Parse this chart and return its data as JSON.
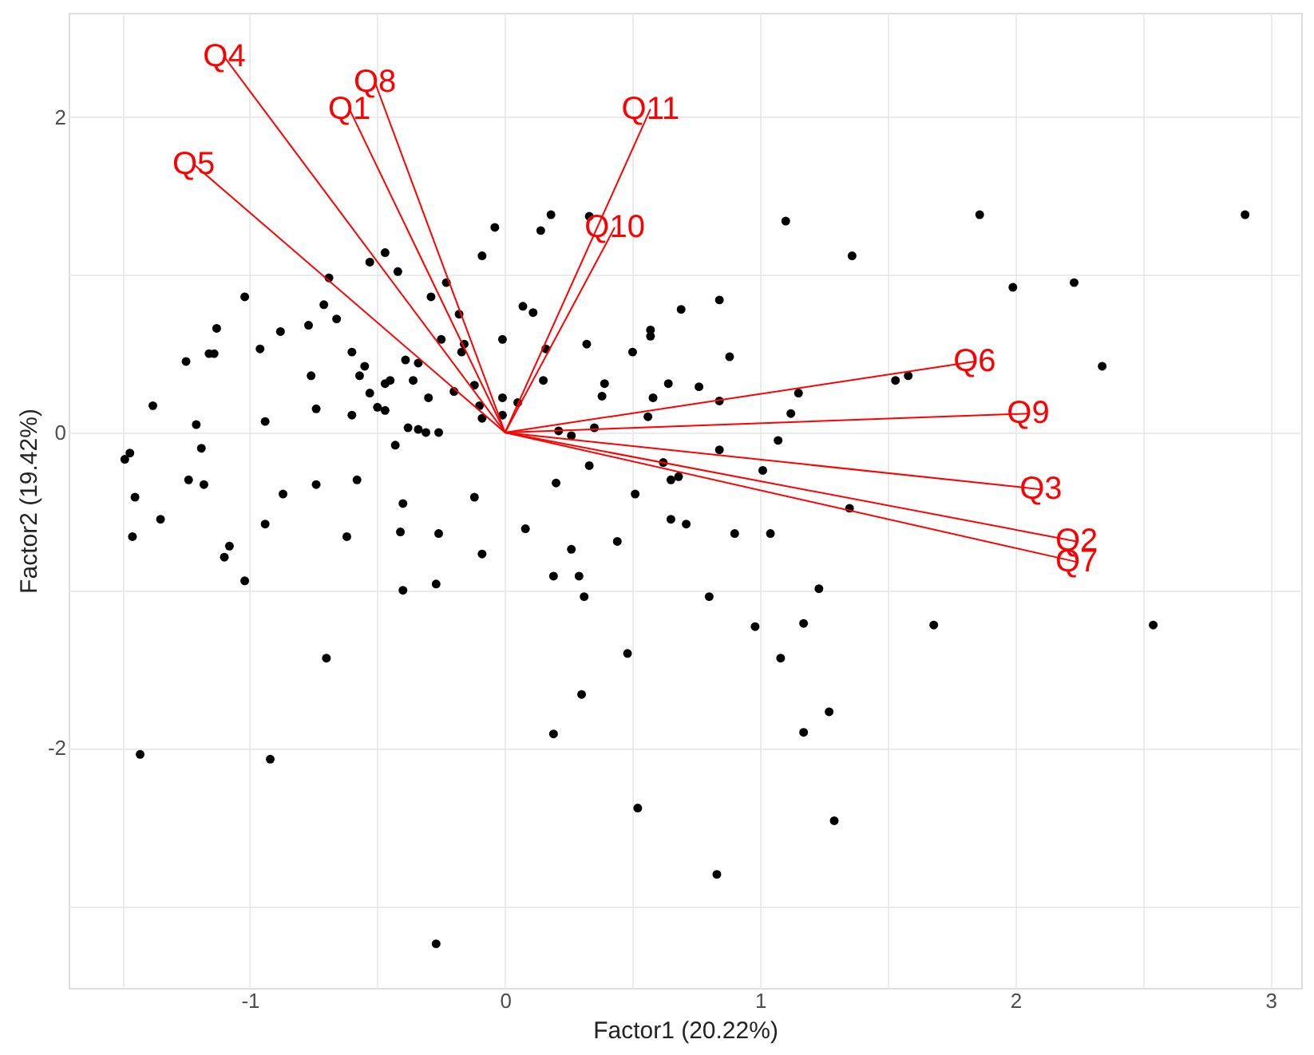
{
  "chart_data": {
    "type": "scatter",
    "xlabel": "Factor1 (20.22%)",
    "ylabel": "Factor2 (19.42%)",
    "xlim": [
      -1.71,
      3.12
    ],
    "ylim": [
      -3.52,
      2.66
    ],
    "xticks": [
      {
        "value": -1.5,
        "label": null
      },
      -1,
      {
        "value": -0.5,
        "label": null
      },
      0,
      {
        "value": 0.5,
        "label": null
      },
      1,
      {
        "value": 1.5,
        "label": null
      },
      2,
      {
        "value": 2.5,
        "label": null
      },
      3
    ],
    "yticks": [
      {
        "value": -3,
        "label": null
      },
      -2,
      {
        "value": -1,
        "label": null
      },
      0,
      {
        "value": 1,
        "label": null
      },
      2
    ],
    "grid": true,
    "line_style": "solid",
    "series": [
      {
        "color": "#000000",
        "marker": "circle",
        "x": [
          -0.04,
          -0.09,
          -0.47,
          -0.53,
          -0.42,
          -0.69,
          -0.23,
          -1.02,
          -0.29,
          -0.71,
          -0.66,
          -0.18,
          -1.13,
          -0.88,
          -0.77,
          -0.01,
          -0.25,
          -0.16,
          -0.17,
          -0.96,
          -1.16,
          -1.14,
          -0.6,
          -1.25,
          -0.39,
          -0.34,
          -0.55,
          -0.57,
          -0.76,
          -0.45,
          -0.47,
          -0.36,
          -0.2,
          -0.12,
          -0.01,
          -0.3,
          -0.53,
          -1.38,
          -0.74,
          -0.5,
          -0.47,
          -0.1,
          -0.01,
          -0.09,
          -1.21,
          -0.94,
          -0.6,
          -0.38,
          -0.34,
          -0.31,
          -0.26,
          -0.43,
          -1.47,
          -1.49,
          -1.19,
          -1.24,
          -1.18,
          -0.74,
          -0.58,
          -1.45,
          -0.87,
          -0.12,
          -0.4,
          -1.35,
          -0.94,
          -1.46,
          -0.62,
          -0.41,
          -0.26,
          -0.09,
          -1.08,
          -1.1,
          0.18,
          0.14,
          0.33,
          1.1,
          1.36,
          0.84,
          0.07,
          0.11,
          0.69,
          0.57,
          0.57,
          0.32,
          0.5,
          0.16,
          0.88,
          0.15,
          0.39,
          0.38,
          0.64,
          0.76,
          0.58,
          0.56,
          0.84,
          1.15,
          1.12,
          1.07,
          1.53,
          1.58,
          0.05,
          0.21,
          0.26,
          0.35,
          0.33,
          0.2,
          0.62,
          0.84,
          1.01,
          0.65,
          0.68,
          0.51,
          1.35,
          0.08,
          0.26,
          0.44,
          0.65,
          0.71,
          0.9,
          1.04,
          1.86,
          2.9,
          1.99,
          2.23,
          2.34,
          1.68,
          2.54,
          -1.02,
          -0.4,
          -0.27,
          -0.7,
          -1.43,
          -0.92,
          -0.27,
          0.19,
          0.29,
          0.31,
          0.8,
          1.23,
          0.98,
          1.17,
          1.08,
          0.48,
          0.3,
          1.27,
          1.17,
          0.19,
          0.52,
          1.29,
          0.83
        ],
        "values": [
          1.3,
          1.12,
          1.14,
          1.08,
          1.02,
          0.98,
          0.95,
          0.86,
          0.86,
          0.81,
          0.72,
          0.75,
          0.66,
          0.64,
          0.68,
          0.59,
          0.59,
          0.56,
          0.51,
          0.53,
          0.5,
          0.5,
          0.51,
          0.45,
          0.46,
          0.44,
          0.42,
          0.36,
          0.36,
          0.33,
          0.31,
          0.33,
          0.26,
          0.3,
          0.22,
          0.22,
          0.25,
          0.17,
          0.15,
          0.16,
          0.14,
          0.17,
          0.11,
          0.09,
          0.05,
          0.07,
          0.11,
          0.03,
          0.02,
          0.0,
          0.0,
          -0.08,
          -0.13,
          -0.17,
          -0.1,
          -0.3,
          -0.33,
          -0.33,
          -0.3,
          -0.41,
          -0.39,
          -0.41,
          -0.45,
          -0.55,
          -0.58,
          -0.66,
          -0.66,
          -0.63,
          -0.64,
          -0.77,
          -0.72,
          -0.79,
          1.38,
          1.28,
          1.37,
          1.34,
          1.12,
          0.84,
          0.8,
          0.76,
          0.78,
          0.65,
          0.61,
          0.56,
          0.51,
          0.53,
          0.48,
          0.33,
          0.31,
          0.23,
          0.31,
          0.29,
          0.22,
          0.1,
          0.2,
          0.25,
          0.12,
          -0.05,
          0.33,
          0.36,
          0.19,
          0.01,
          -0.02,
          0.03,
          -0.21,
          -0.32,
          -0.19,
          -0.11,
          -0.24,
          -0.3,
          -0.28,
          -0.39,
          -0.48,
          -0.61,
          -0.74,
          -0.69,
          -0.55,
          -0.58,
          -0.64,
          -0.64,
          1.38,
          1.38,
          0.92,
          0.95,
          0.42,
          -1.22,
          -1.22,
          -0.94,
          -1.0,
          -0.96,
          -1.43,
          -2.04,
          -2.07,
          -3.24,
          -0.91,
          -0.91,
          -1.04,
          -1.04,
          -0.99,
          -1.23,
          -1.21,
          -1.43,
          -1.4,
          -1.66,
          -1.77,
          -1.9,
          -1.91,
          -2.38,
          -2.46,
          -2.8
        ]
      },
      {
        "name": "Q4",
        "type": "line",
        "color": "#ff0000",
        "x": [
          0,
          -1.1
        ],
        "values": [
          0,
          2.38
        ]
      },
      {
        "name": "Q8",
        "type": "line",
        "color": "#ff0000",
        "x": [
          0,
          -0.51
        ],
        "values": [
          0,
          2.22
        ]
      },
      {
        "name": "Q1",
        "type": "line",
        "color": "#ff0000",
        "x": [
          0,
          -0.61
        ],
        "values": [
          0,
          2.05
        ]
      },
      {
        "name": "Q11",
        "type": "line",
        "color": "#ff0000",
        "x": [
          0,
          0.57
        ],
        "values": [
          0,
          2.05
        ]
      },
      {
        "name": "Q5",
        "type": "line",
        "color": "#ff0000",
        "x": [
          0,
          -1.22
        ],
        "values": [
          0,
          1.7
        ]
      },
      {
        "name": "Q10",
        "type": "line",
        "color": "#ff0000",
        "x": [
          0,
          0.43
        ],
        "values": [
          0,
          1.3
        ]
      },
      {
        "name": "Q6",
        "type": "line",
        "color": "#ff0000",
        "x": [
          0,
          1.84
        ],
        "values": [
          0,
          0.45
        ]
      },
      {
        "name": "Q9",
        "type": "line",
        "color": "#ff0000",
        "x": [
          0,
          2.05
        ],
        "values": [
          0,
          0.12
        ]
      },
      {
        "name": "Q3",
        "type": "line",
        "color": "#ff0000",
        "x": [
          0,
          2.1
        ],
        "values": [
          0,
          -0.36
        ]
      },
      {
        "name": "Q2",
        "type": "line",
        "color": "#ff0000",
        "x": [
          0,
          2.24
        ],
        "values": [
          0,
          -0.69
        ]
      },
      {
        "name": "Q7",
        "type": "line",
        "color": "#ff0000",
        "x": [
          0,
          2.24
        ],
        "values": [
          0,
          -0.82
        ]
      }
    ]
  }
}
